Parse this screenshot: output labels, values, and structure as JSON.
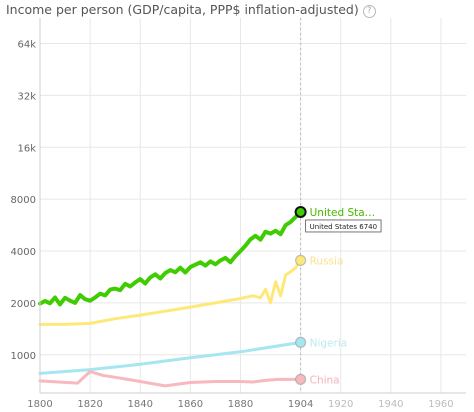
{
  "title": "Income per person (GDP/capita, PPP$ inflation-adjusted)",
  "help_symbol": "?",
  "tooltip": "United States 6740",
  "colors": {
    "grid": "#e7e7e7",
    "axis": "#cfcfcf",
    "current_year_line": "#bbbbbb",
    "selected_outline": "#111111"
  },
  "chart_data": {
    "type": "line",
    "title": "Income per person (GDP/capita, PPP$ inflation-adjusted)",
    "xlabel": "",
    "ylabel": "Income per person (GDP/capita, PPP$ inflation-adjusted)",
    "yscale": "log",
    "xlim": [
      1800,
      1970
    ],
    "ylim": [
      600,
      90000
    ],
    "current_year": 1904,
    "x_ticks": [
      "1800",
      "1820",
      "1840",
      "1860",
      "1880",
      "1904",
      "1920",
      "1940",
      "1960"
    ],
    "x_tick_values": [
      1800,
      1820,
      1840,
      1860,
      1880,
      1904,
      1920,
      1940,
      1960
    ],
    "x_ticks_faded": [
      "1920",
      "1940",
      "1960"
    ],
    "y_ticks": [
      "1000",
      "2000",
      "4000",
      "8000",
      "16k",
      "32k",
      "64k"
    ],
    "y_tick_values": [
      1000,
      2000,
      4000,
      8000,
      16000,
      32000,
      64000
    ],
    "grid": true,
    "series": [
      {
        "name": "United States",
        "label": "United Sta…",
        "color": "#3fcc00",
        "label_color": "#45b800",
        "selected": true,
        "x": [
          1800,
          1802,
          1804,
          1806,
          1808,
          1810,
          1812,
          1814,
          1816,
          1818,
          1820,
          1822,
          1824,
          1826,
          1828,
          1830,
          1832,
          1834,
          1836,
          1838,
          1840,
          1842,
          1844,
          1846,
          1848,
          1850,
          1852,
          1854,
          1856,
          1858,
          1860,
          1862,
          1864,
          1866,
          1868,
          1870,
          1872,
          1874,
          1876,
          1878,
          1880,
          1882,
          1884,
          1886,
          1888,
          1890,
          1892,
          1894,
          1896,
          1898,
          1900,
          1902,
          1904
        ],
        "values": [
          1980,
          2050,
          1990,
          2150,
          1960,
          2140,
          2060,
          2000,
          2220,
          2100,
          2060,
          2150,
          2260,
          2210,
          2390,
          2420,
          2370,
          2580,
          2490,
          2630,
          2750,
          2590,
          2810,
          2930,
          2770,
          2980,
          3100,
          3010,
          3200,
          3000,
          3230,
          3330,
          3440,
          3290,
          3480,
          3350,
          3530,
          3650,
          3440,
          3740,
          4000,
          4300,
          4680,
          4900,
          4650,
          5180,
          5050,
          5240,
          5010,
          5650,
          5900,
          6300,
          6740
        ]
      },
      {
        "name": "Russia",
        "label": "Russia",
        "color": "#ffe87a",
        "label_color": "#fbe28f",
        "selected": false,
        "x": [
          1800,
          1810,
          1820,
          1830,
          1840,
          1850,
          1860,
          1870,
          1880,
          1885,
          1888,
          1890,
          1892,
          1894,
          1896,
          1898,
          1900,
          1902,
          1904
        ],
        "values": [
          1500,
          1500,
          1520,
          1620,
          1700,
          1790,
          1890,
          2000,
          2120,
          2200,
          2140,
          2400,
          2000,
          2650,
          2200,
          2900,
          3030,
          3200,
          3530
        ]
      },
      {
        "name": "Nigeria",
        "label": "Nigeria",
        "color": "#a6e6f0",
        "label_color": "#bde9ef",
        "selected": false,
        "x": [
          1800,
          1820,
          1840,
          1860,
          1880,
          1904
        ],
        "values": [
          780,
          820,
          880,
          960,
          1040,
          1180
        ]
      },
      {
        "name": "China",
        "label": "China",
        "color": "#f7b8be",
        "label_color": "#f5b3b9",
        "selected": false,
        "x": [
          1800,
          1815,
          1820,
          1825,
          1830,
          1840,
          1850,
          1860,
          1870,
          1880,
          1885,
          1890,
          1895,
          1904
        ],
        "values": [
          705,
          685,
          800,
          760,
          740,
          700,
          660,
          690,
          700,
          700,
          695,
          710,
          720,
          720
        ]
      }
    ]
  }
}
